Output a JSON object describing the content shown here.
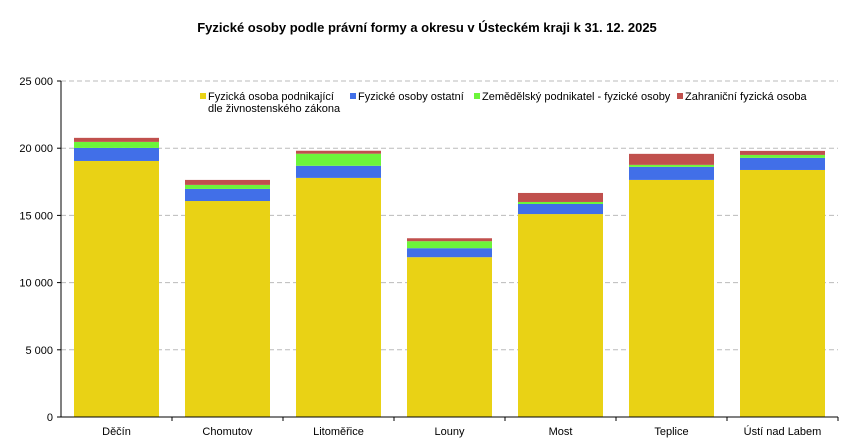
{
  "chart_data": {
    "type": "bar",
    "stacked": true,
    "title": "Fyzické osoby  podle právní formy a okresu v Ústeckém  kraji k 31. 12. 2025",
    "xlabel": "",
    "ylabel": "",
    "ylim": [
      0,
      25000
    ],
    "yticks": [
      0,
      5000,
      10000,
      15000,
      20000,
      25000
    ],
    "ytick_labels": [
      "0",
      "5 000",
      "10 000",
      "15 000",
      "20 000",
      "25 000"
    ],
    "grid": true,
    "legend_position": "top",
    "categories": [
      "Děčín",
      "Chomutov",
      "Litoměřice",
      "Louny",
      "Most",
      "Teplice",
      "Ústí nad Labem"
    ],
    "series": [
      {
        "name": "Fyzická osoba podnikající dle živnostenského zákona",
        "legend_lines": [
          "Fyzická osoba podnikající",
          "dle živnostenského zákona"
        ],
        "color": "#E9D215",
        "values": [
          19050,
          16070,
          17790,
          11890,
          15100,
          17640,
          18380
        ]
      },
      {
        "name": "Fyzické osoby ostatní",
        "legend_lines": [
          "Fyzické osoby ostatní"
        ],
        "color": "#416FE8",
        "values": [
          970,
          900,
          900,
          670,
          750,
          970,
          900
        ]
      },
      {
        "name": "Zemědělský podnikatel - fyzické osoby",
        "legend_lines": [
          "Zemědělský podnikatel - fyzické osoby"
        ],
        "color": "#6CF53A",
        "values": [
          450,
          300,
          900,
          520,
          150,
          150,
          220
        ]
      },
      {
        "name": "Zahraniční fyzická osoba",
        "legend_lines": [
          "Zahraniční fyzická osoba"
        ],
        "color": "#C0504D",
        "values": [
          300,
          370,
          220,
          220,
          670,
          820,
          300
        ]
      }
    ]
  }
}
